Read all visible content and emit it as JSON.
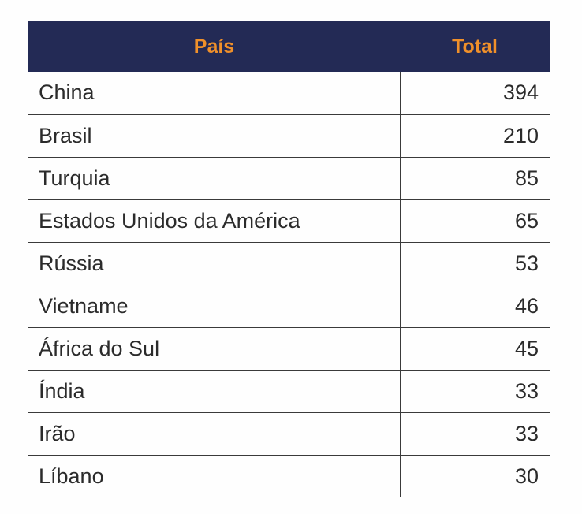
{
  "table": {
    "headers": {
      "country": "País",
      "total": "Total"
    },
    "rows": [
      {
        "country": "China",
        "total": "394"
      },
      {
        "country": "Brasil",
        "total": "210"
      },
      {
        "country": "Turquia",
        "total": "85"
      },
      {
        "country": "Estados Unidos da América",
        "total": "65"
      },
      {
        "country": "Rússia",
        "total": "53"
      },
      {
        "country": "Vietname",
        "total": "46"
      },
      {
        "country": "África do Sul",
        "total": "45"
      },
      {
        "country": "Índia",
        "total": "33"
      },
      {
        "country": "Irão",
        "total": "33"
      },
      {
        "country": "Líbano",
        "total": "30"
      }
    ]
  },
  "colors": {
    "header_background": "#232a55",
    "header_text": "#f0902a",
    "body_text": "#2b2b2b",
    "grid_lines": "#3a3a3a"
  }
}
